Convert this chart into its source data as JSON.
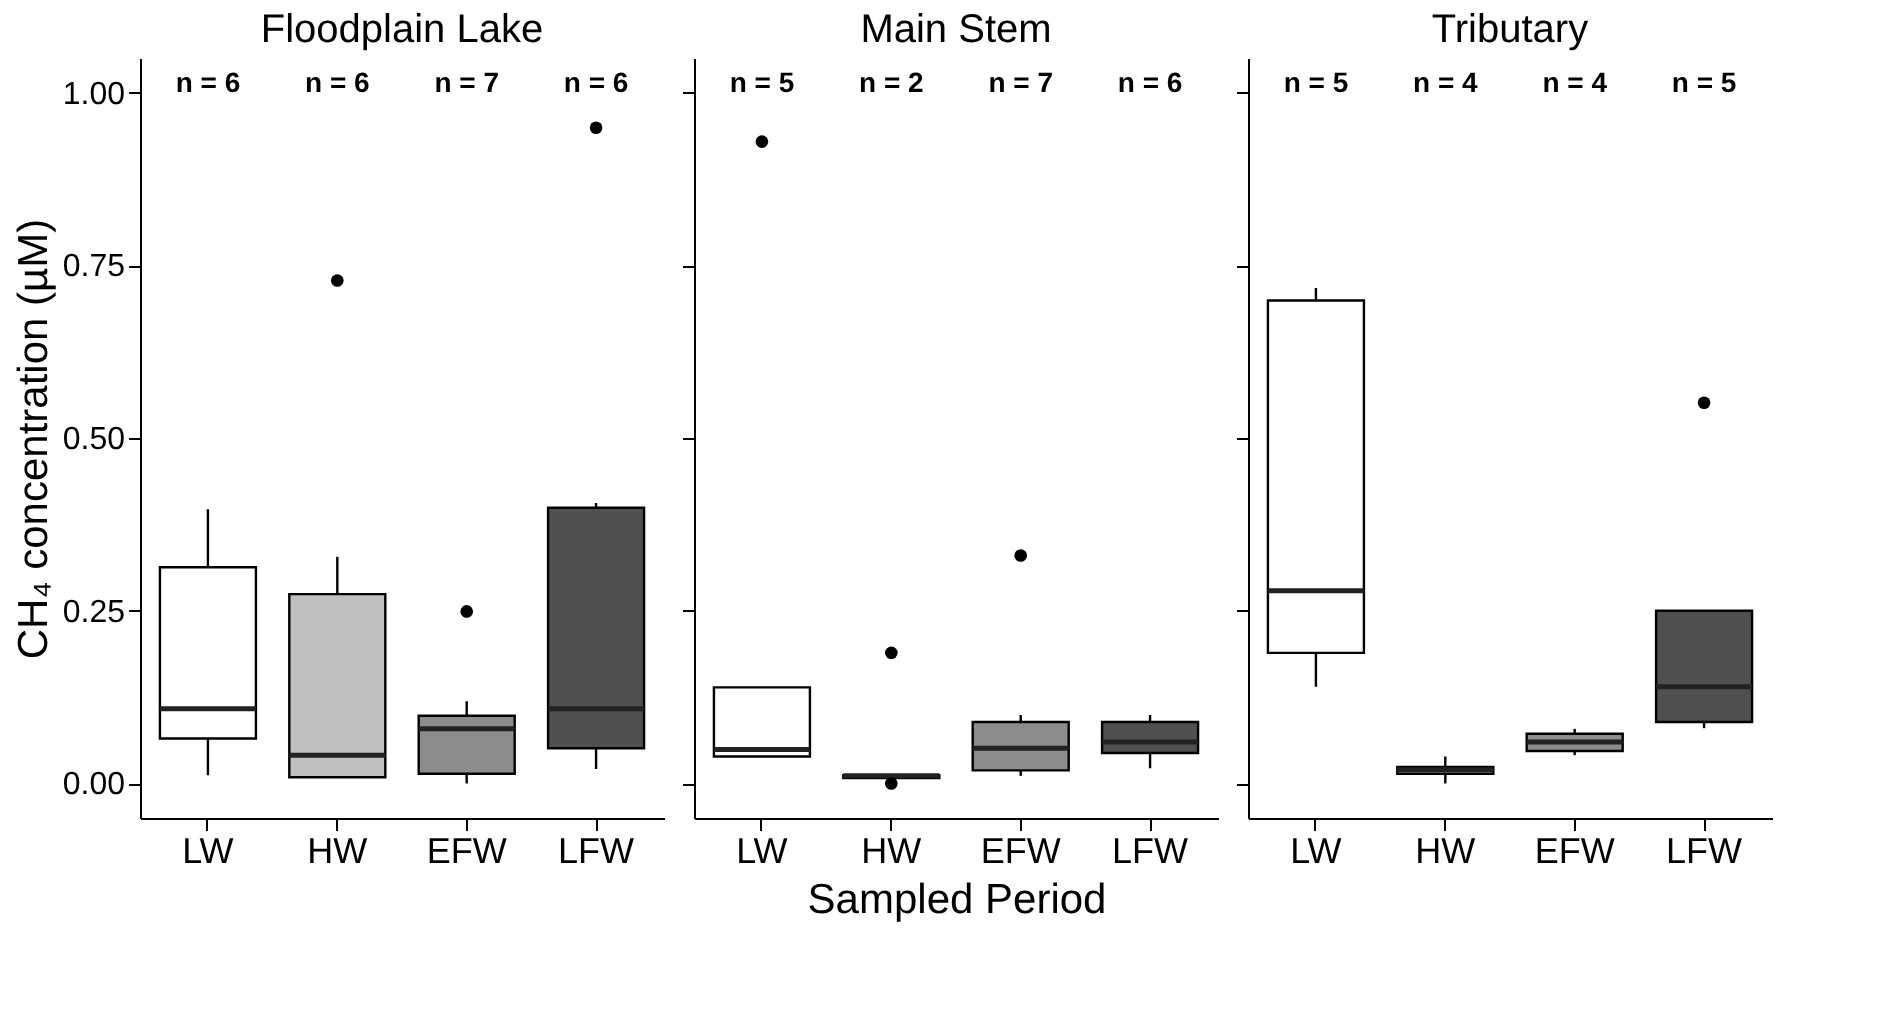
{
  "chart_data": [
    {
      "type": "box",
      "title": "Floodplain Lake",
      "ylabel": "CH₄ concentration (µM)",
      "categories": [
        "LW",
        "HW",
        "EFW",
        "LFW"
      ],
      "colors": [
        "#ffffff",
        "#c0c0c0",
        "#8c8c8c",
        "#505050"
      ],
      "boxes": [
        {
          "low": 0.012,
          "q1": 0.065,
          "median": 0.108,
          "q3": 0.313,
          "high": 0.397
        },
        {
          "low": 0.009,
          "q1": 0.009,
          "median": 0.041,
          "q3": 0.274,
          "high": 0.328,
          "outliers": [
            0.728
          ]
        },
        {
          "low": 0.0,
          "q1": 0.014,
          "median": 0.079,
          "q3": 0.098,
          "high": 0.119,
          "outliers": [
            0.249
          ]
        },
        {
          "low": 0.021,
          "q1": 0.051,
          "median": 0.108,
          "q3": 0.399,
          "high": 0.406,
          "outliers": [
            0.949
          ]
        }
      ],
      "ylim": [
        -0.05,
        1.05
      ],
      "yticks": [
        {
          "value": 0,
          "label": "0.00"
        },
        0.25,
        {
          "value": 0.5,
          "label": "0.50"
        },
        0.75,
        {
          "value": 1,
          "label": "1.00"
        }
      ],
      "annotations": [
        "n = 6",
        "n = 6",
        "n = 7",
        "n = 6"
      ]
    },
    {
      "type": "box",
      "title": "Main Stem",
      "xlabel": "Sampled Period",
      "tick_labels": "x",
      "categories": [
        "LW",
        "HW",
        "EFW",
        "LFW"
      ],
      "colors": [
        "#ffffff",
        "#c0c0c0",
        "#8c8c8c",
        "#505050"
      ],
      "boxes": [
        {
          "low": 0.039,
          "q1": 0.039,
          "median": 0.049,
          "q3": 0.139,
          "high": 0.139,
          "outliers": [
            0.929
          ]
        },
        {
          "low": 0.008,
          "q1": 0.008,
          "median": 0.011,
          "q3": 0.012,
          "high": 0.012,
          "outliers": [
            0.189,
            0.0
          ]
        },
        {
          "low": 0.011,
          "q1": 0.019,
          "median": 0.051,
          "q3": 0.089,
          "high": 0.099,
          "outliers": [
            0.33
          ]
        },
        {
          "low": 0.022,
          "q1": 0.044,
          "median": 0.06,
          "q3": 0.089,
          "high": 0.099
        }
      ],
      "ylim": [
        -0.05,
        1.05
      ],
      "yticks": [
        0,
        0.25,
        0.5,
        0.75,
        1
      ],
      "annotations": [
        "n = 5",
        "n = 2",
        "n = 7",
        "n = 6"
      ]
    },
    {
      "type": "box",
      "title": "Tributary",
      "tick_labels": "x",
      "categories": [
        "LW",
        "HW",
        "EFW",
        "LFW"
      ],
      "colors": [
        "#ffffff",
        "#c0c0c0",
        "#8c8c8c",
        "#505050"
      ],
      "boxes": [
        {
          "low": 0.14,
          "q1": 0.189,
          "median": 0.279,
          "q3": 0.699,
          "high": 0.717
        },
        {
          "low": 0.0,
          "q1": 0.014,
          "median": 0.02,
          "q3": 0.024,
          "high": 0.039
        },
        {
          "low": 0.041,
          "q1": 0.047,
          "median": 0.06,
          "q3": 0.072,
          "high": 0.079
        },
        {
          "low": 0.08,
          "q1": 0.089,
          "median": 0.14,
          "q3": 0.25,
          "high": 0.25,
          "outliers": [
            0.551
          ]
        }
      ],
      "ylim": [
        -0.05,
        1.05
      ],
      "yticks": [
        0,
        0.25,
        0.5,
        0.75,
        1
      ],
      "annotations": [
        "n = 5",
        "n = 4",
        "n = 4",
        "n = 5"
      ]
    }
  ]
}
